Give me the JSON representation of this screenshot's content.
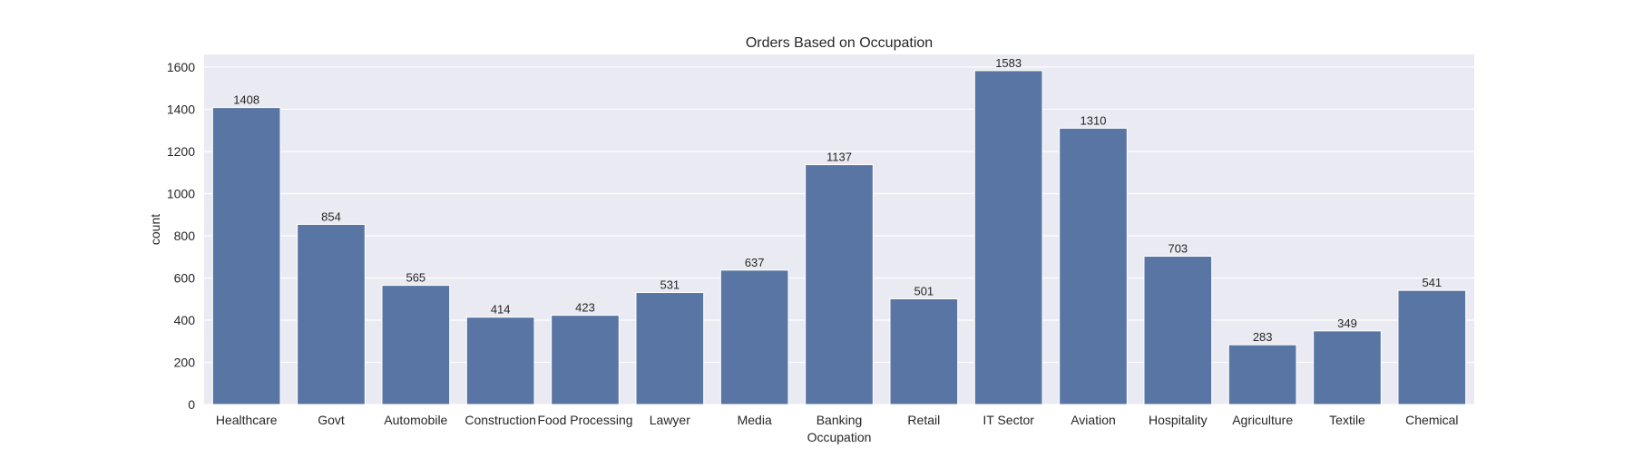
{
  "chart_data": {
    "type": "bar",
    "title": "Orders Based on Occupation",
    "xlabel": "Occupation",
    "ylabel": "count",
    "categories": [
      "Healthcare",
      "Govt",
      "Automobile",
      "Construction",
      "Food Processing",
      "Lawyer",
      "Media",
      "Banking",
      "Retail",
      "IT Sector",
      "Aviation",
      "Hospitality",
      "Agriculture",
      "Textile",
      "Chemical"
    ],
    "values": [
      1408,
      854,
      565,
      414,
      423,
      531,
      637,
      1137,
      501,
      1583,
      1310,
      703,
      283,
      349,
      541
    ],
    "ylim": [
      0,
      1660
    ],
    "yticks": [
      0,
      200,
      400,
      600,
      800,
      1000,
      1200,
      1400,
      1600
    ],
    "grid": true,
    "data_labels": true,
    "colors": {
      "bar": "#5875a4",
      "plot_background": "#eaeaf2",
      "grid": "#ffffff",
      "text": "#262626"
    }
  }
}
